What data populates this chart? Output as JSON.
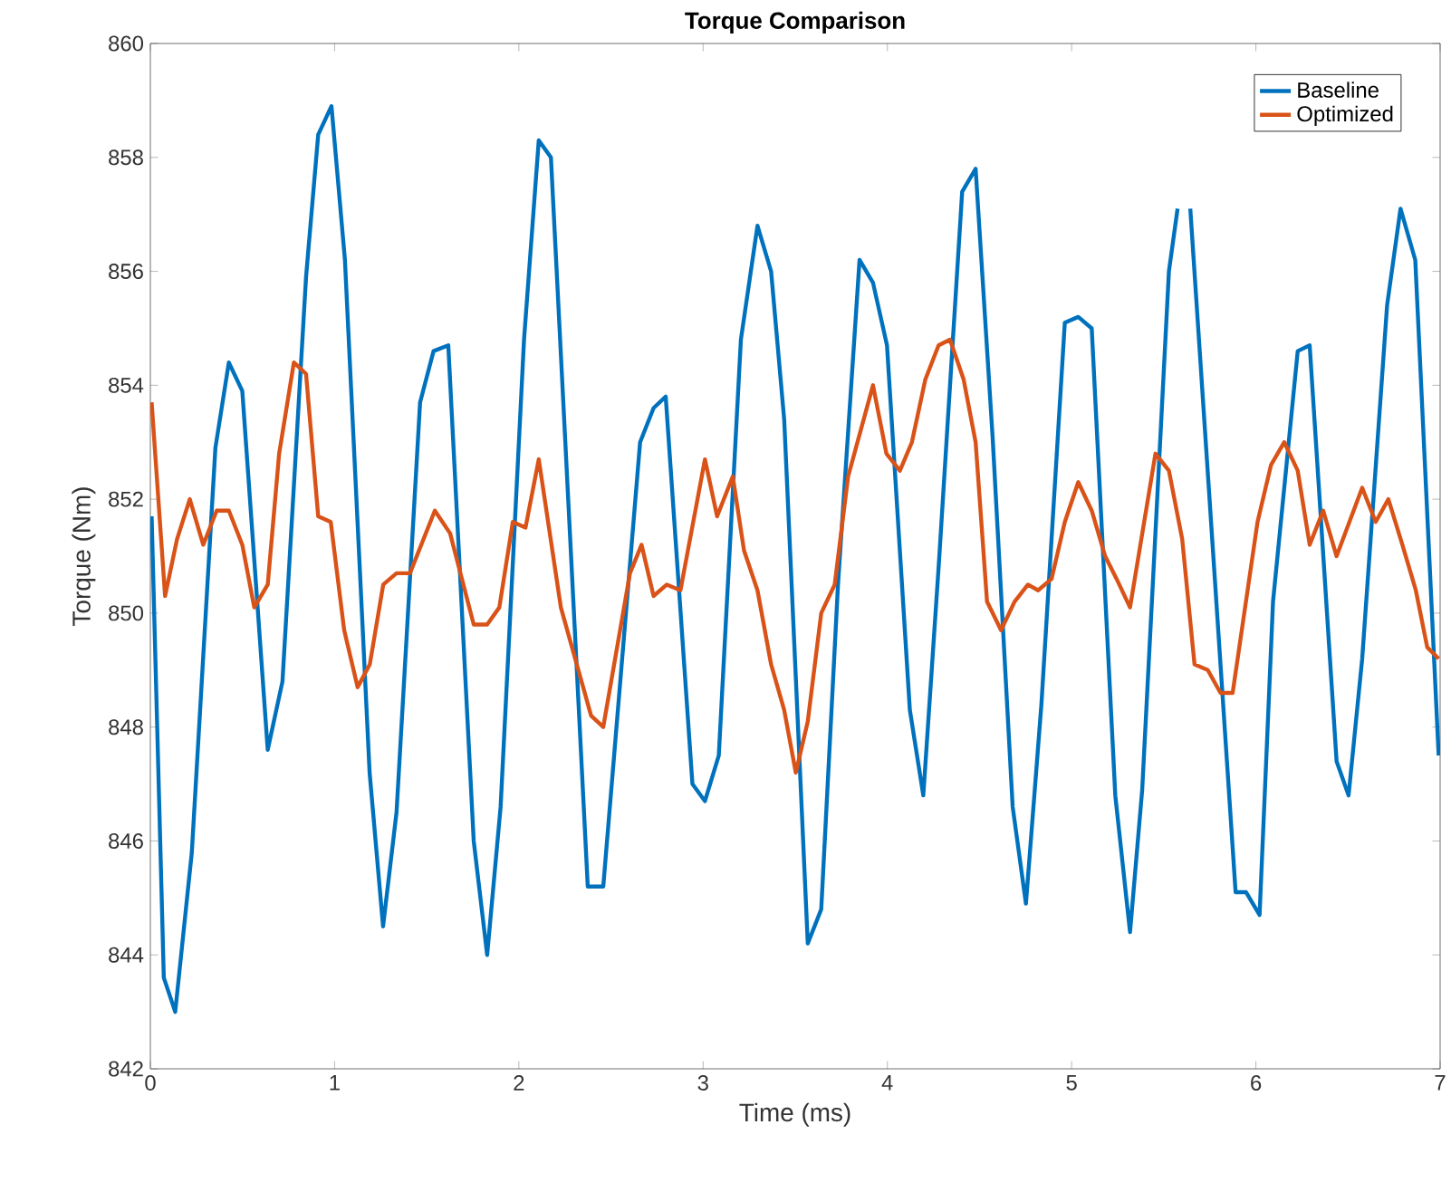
{
  "chart_data": {
    "type": "line",
    "title": "Torque Comparison",
    "xlabel": "Time (ms)",
    "ylabel": "Torque (Nm)",
    "xlim": [
      0,
      7
    ],
    "xticks": [
      0,
      1,
      2,
      3,
      4,
      5,
      6,
      7
    ],
    "ylim": [
      842,
      860
    ],
    "yticks": [
      842,
      844,
      846,
      848,
      850,
      852,
      854,
      856,
      858,
      860
    ],
    "grid": false,
    "legend": "top right",
    "line_style": "solid",
    "marker": "none",
    "series": [
      {
        "name": "Baseline",
        "color": "#0072bd",
        "x": [
          0.007,
          0.073,
          0.135,
          0.225,
          0.353,
          0.426,
          0.499,
          0.637,
          0.717,
          0.845,
          0.911,
          0.983,
          1.056,
          1.19,
          1.263,
          1.336,
          1.464,
          1.537,
          1.617,
          1.755,
          1.828,
          1.901,
          2.028,
          2.108,
          2.174,
          2.374,
          2.43,
          2.458,
          2.658,
          2.731,
          2.797,
          2.942,
          3.01,
          3.085,
          3.205,
          3.295,
          3.369,
          3.44,
          3.568,
          3.641,
          3.732,
          3.849,
          3.922,
          3.998,
          4.122,
          4.195,
          4.28,
          4.406,
          4.479,
          4.571,
          4.68,
          4.752,
          4.836,
          4.963,
          5.036,
          5.109,
          5.237,
          5.317,
          5.383,
          5.528,
          5.575,
          5.61,
          5.644,
          5.89,
          5.947,
          6.02,
          6.093,
          6.227,
          6.292,
          6.438,
          6.503,
          6.577,
          6.712,
          6.785,
          6.865,
          6.992
        ],
        "values": [
          851.7,
          843.6,
          843.0,
          845.8,
          852.9,
          854.4,
          853.9,
          847.6,
          848.8,
          855.9,
          858.4,
          858.9,
          856.2,
          847.2,
          844.5,
          846.5,
          853.7,
          854.6,
          854.7,
          846.0,
          844.0,
          846.6,
          854.8,
          858.3,
          858.0,
          845.2,
          845.2,
          845.2,
          853.0,
          853.6,
          853.8,
          847.0,
          846.7,
          847.5,
          854.8,
          856.8,
          856.0,
          853.4,
          844.2,
          844.8,
          850.5,
          856.2,
          855.8,
          854.7,
          848.3,
          846.8,
          850.9,
          857.4,
          857.8,
          853.1,
          846.6,
          844.9,
          848.4,
          855.1,
          855.2,
          855.0,
          846.8,
          844.4,
          846.9,
          856.0,
          857.1,
          null,
          857.1,
          845.1,
          845.1,
          844.7,
          850.2,
          854.6,
          854.7,
          847.4,
          846.8,
          849.2,
          855.4,
          857.1,
          856.2,
          847.5
        ]
      },
      {
        "name": "Optimized",
        "color": "#d95319",
        "x": [
          0.007,
          0.08,
          0.145,
          0.214,
          0.287,
          0.36,
          0.426,
          0.499,
          0.564,
          0.637,
          0.699,
          0.779,
          0.845,
          0.911,
          0.979,
          1.052,
          1.125,
          1.191,
          1.264,
          1.336,
          1.409,
          1.544,
          1.627,
          1.755,
          1.828,
          1.894,
          1.967,
          2.036,
          2.108,
          2.228,
          2.392,
          2.458,
          2.603,
          2.666,
          2.731,
          2.803,
          2.877,
          3.01,
          3.076,
          3.161,
          3.222,
          3.295,
          3.369,
          3.44,
          3.503,
          3.568,
          3.641,
          3.714,
          3.787,
          3.922,
          3.995,
          4.068,
          4.133,
          4.206,
          4.278,
          4.34,
          4.414,
          4.479,
          4.541,
          4.617,
          4.69,
          4.763,
          4.818,
          4.891,
          4.963,
          5.036,
          5.109,
          5.182,
          5.244,
          5.317,
          5.455,
          5.528,
          5.6,
          5.667,
          5.739,
          5.808,
          5.874,
          6.009,
          6.082,
          6.154,
          6.227,
          6.292,
          6.365,
          6.438,
          6.577,
          6.65,
          6.719,
          6.795,
          6.868,
          6.93,
          6.992
        ],
        "values": [
          853.7,
          850.3,
          851.3,
          852.0,
          851.2,
          851.8,
          851.8,
          851.2,
          850.1,
          850.5,
          852.8,
          854.4,
          854.2,
          851.7,
          851.6,
          849.7,
          848.7,
          849.1,
          850.5,
          850.7,
          850.7,
          851.8,
          851.4,
          849.8,
          849.8,
          850.1,
          851.6,
          851.5,
          852.7,
          850.1,
          848.2,
          848.0,
          850.7,
          851.2,
          850.3,
          850.5,
          850.4,
          852.7,
          851.7,
          852.4,
          851.1,
          850.4,
          849.1,
          848.3,
          847.2,
          848.1,
          850.0,
          850.5,
          852.4,
          854.0,
          852.8,
          852.5,
          853.0,
          854.1,
          854.7,
          854.8,
          854.1,
          853.0,
          850.2,
          849.7,
          850.2,
          850.5,
          850.4,
          850.6,
          851.6,
          852.3,
          851.8,
          851.0,
          850.6,
          850.1,
          852.8,
          852.5,
          851.3,
          849.1,
          849.0,
          848.6,
          848.6,
          851.6,
          852.6,
          853.0,
          852.5,
          851.2,
          851.8,
          851.0,
          852.2,
          851.6,
          852.0,
          851.2,
          850.4,
          849.4,
          849.2
        ]
      }
    ]
  }
}
